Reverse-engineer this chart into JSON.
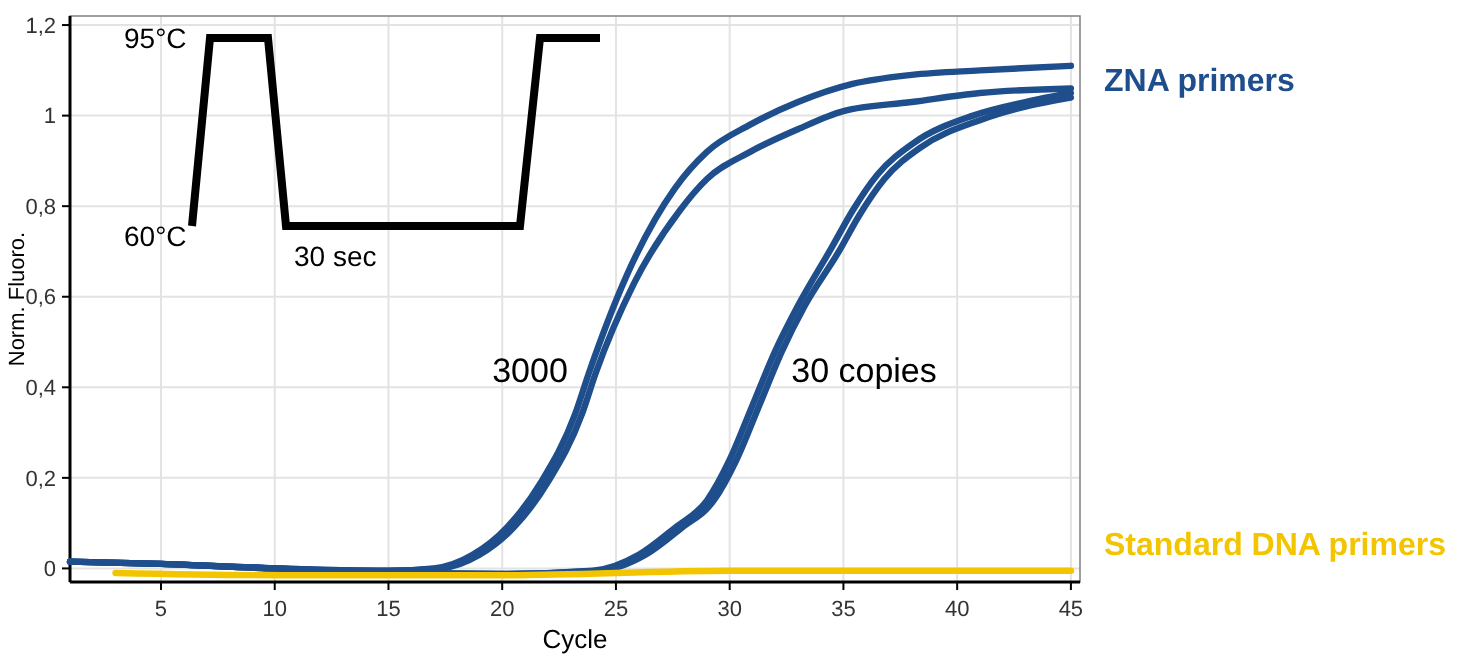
{
  "chart_data": {
    "type": "line",
    "xlabel": "Cycle",
    "ylabel": "Norm. Fluoro.",
    "xlim": [
      1,
      45.4
    ],
    "ylim": [
      -0.03,
      1.22
    ],
    "xticks": [
      5,
      10,
      15,
      20,
      25,
      30,
      35,
      40,
      45
    ],
    "yticks": [
      {
        "value": 0,
        "label": "0"
      },
      {
        "value": 0.2,
        "label": "0,2"
      },
      {
        "value": 0.4,
        "label": "0,4"
      },
      {
        "value": 0.6,
        "label": "0,6"
      },
      {
        "value": 0.8,
        "label": "0,8"
      },
      {
        "value": 1,
        "label": "1"
      },
      {
        "value": 1.2,
        "label": "1,2"
      }
    ],
    "grid": true,
    "line_style": "solid",
    "marker": "none",
    "series": [
      {
        "name": "ZNA primers",
        "color": "#1f4e8c",
        "x": [
          1,
          5,
          10,
          15,
          17,
          18.7,
          20.2,
          21.7,
          23.2,
          23.8,
          25.5,
          27.6,
          29,
          30.9,
          33,
          35.4,
          38,
          41,
          45
        ],
        "values": [
          0.015,
          0.01,
          0.0,
          -0.005,
          0.0,
          0.03,
          0.09,
          0.19,
          0.34,
          0.43,
          0.65,
          0.84,
          0.92,
          0.98,
          1.03,
          1.07,
          1.09,
          1.1,
          1.11
        ]
      },
      {
        "color": "#1f4e8c",
        "x": [
          1,
          5,
          10,
          15,
          17.3,
          19,
          20.5,
          22,
          23.5,
          24.1,
          25.8,
          27.8,
          29,
          30.9,
          33,
          35,
          38,
          41,
          45
        ],
        "values": [
          0.015,
          0.01,
          0.0,
          -0.005,
          0.0,
          0.03,
          0.09,
          0.19,
          0.34,
          0.43,
          0.63,
          0.79,
          0.86,
          0.92,
          0.97,
          1.01,
          1.03,
          1.05,
          1.06
        ]
      },
      {
        "color": "#1f4e8c",
        "x": [
          1,
          5,
          10,
          15,
          20,
          24,
          26,
          27.6,
          29,
          30,
          31,
          32,
          33,
          34.5,
          35.4,
          36.5,
          38.1,
          40.7,
          43,
          45
        ],
        "values": [
          0.015,
          0.01,
          0.0,
          -0.01,
          -0.012,
          -0.005,
          0.03,
          0.09,
          0.15,
          0.24,
          0.36,
          0.48,
          0.58,
          0.71,
          0.79,
          0.87,
          0.94,
          1.0,
          1.03,
          1.05
        ]
      },
      {
        "color": "#1f4e8c",
        "x": [
          1,
          5,
          10,
          15,
          20,
          24.3,
          26.3,
          27.9,
          29.3,
          30.3,
          31.3,
          32.3,
          33.3,
          34.8,
          35.7,
          36.8,
          38.4,
          41,
          43,
          45
        ],
        "values": [
          0.015,
          0.01,
          0.0,
          -0.01,
          -0.012,
          -0.005,
          0.03,
          0.09,
          0.15,
          0.24,
          0.36,
          0.48,
          0.58,
          0.7,
          0.78,
          0.86,
          0.93,
          0.99,
          1.02,
          1.04
        ]
      },
      {
        "name": "Standard DNA primers",
        "color": "#f2c500",
        "x": [
          3,
          10,
          20,
          30,
          45
        ],
        "values": [
          -0.01,
          -0.015,
          -0.015,
          -0.005,
          -0.005
        ]
      }
    ],
    "annotations": [
      "95°C",
      "60°C",
      "30 sec",
      "3000",
      "30 copies"
    ]
  }
}
